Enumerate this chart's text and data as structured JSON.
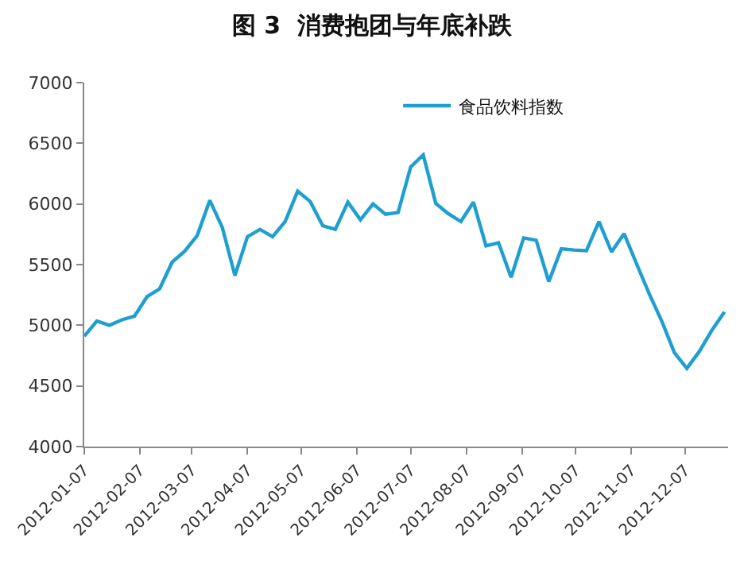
{
  "chart_data": {
    "type": "line",
    "title": "图 3  消费抱团与年底补跌",
    "x": [
      "2012-01-07",
      "2012-01-14",
      "2012-01-21",
      "2012-01-28",
      "2012-02-04",
      "2012-02-11",
      "2012-02-18",
      "2012-02-25",
      "2012-03-03",
      "2012-03-10",
      "2012-03-17",
      "2012-03-24",
      "2012-03-31",
      "2012-04-07",
      "2012-04-14",
      "2012-04-21",
      "2012-04-28",
      "2012-05-05",
      "2012-05-12",
      "2012-05-19",
      "2012-05-26",
      "2012-06-02",
      "2012-06-09",
      "2012-06-16",
      "2012-06-23",
      "2012-06-30",
      "2012-07-07",
      "2012-07-14",
      "2012-07-21",
      "2012-07-28",
      "2012-08-04",
      "2012-08-11",
      "2012-08-18",
      "2012-08-25",
      "2012-09-01",
      "2012-09-08",
      "2012-09-15",
      "2012-09-22",
      "2012-09-29",
      "2012-10-06",
      "2012-10-13",
      "2012-10-20",
      "2012-10-27",
      "2012-11-03",
      "2012-11-10",
      "2012-11-17",
      "2012-11-24",
      "2012-12-01",
      "2012-12-08",
      "2012-12-15",
      "2012-12-22",
      "2012-12-29"
    ],
    "series": [
      {
        "name": "食品饮料指数",
        "color": "#1e9fd0",
        "values": [
          4910,
          5035,
          5000,
          5045,
          5075,
          5235,
          5300,
          5520,
          5610,
          5740,
          6030,
          5805,
          5410,
          5730,
          5790,
          5730,
          5855,
          6105,
          6020,
          5820,
          5790,
          6015,
          5870,
          6000,
          5915,
          5930,
          6305,
          6405,
          6005,
          5920,
          5855,
          6015,
          5655,
          5680,
          5395,
          5720,
          5700,
          5360,
          5630,
          5620,
          5615,
          5855,
          5605,
          5755,
          5505,
          5260,
          5035,
          4775,
          4645,
          4785,
          4960,
          5110
        ]
      }
    ],
    "xlim": [
      "2012-01-07",
      "2012-12-31"
    ],
    "xticks": [
      "2012-01-07",
      "2012-02-07",
      "2012-03-07",
      "2012-04-07",
      "2012-05-07",
      "2012-06-07",
      "2012-07-07",
      "2012-08-07",
      "2012-09-07",
      "2012-10-07",
      "2012-11-07",
      "2012-12-07"
    ],
    "ylim": [
      4000,
      7000
    ],
    "yticks": [
      4000,
      4500,
      5000,
      5500,
      6000,
      6500,
      7000
    ],
    "grid": false,
    "legend": "top",
    "marker": "none",
    "line_style": "solid"
  }
}
